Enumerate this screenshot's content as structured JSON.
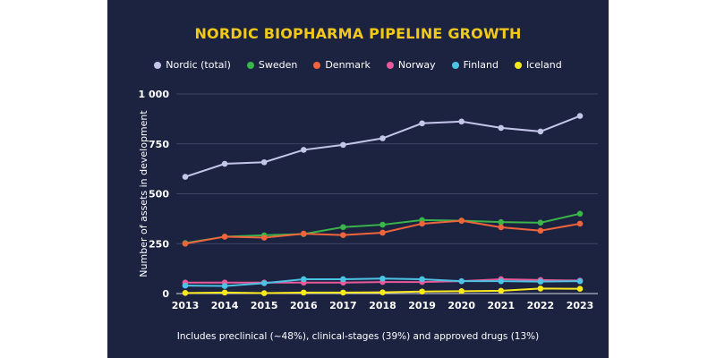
{
  "chart_data": {
    "type": "line",
    "title": "NORDIC BIOPHARMA PIPELINE GROWTH",
    "ylabel": "Number of assets in development",
    "xlabel": "",
    "x": [
      "2013",
      "2014",
      "2015",
      "2016",
      "2017",
      "2018",
      "2019",
      "2020",
      "2021",
      "2022",
      "2023"
    ],
    "ylim": [
      0,
      1000
    ],
    "yticks": [
      0,
      250,
      500,
      750,
      1000
    ],
    "ytick_labels": [
      "0",
      "250",
      "500",
      "750",
      "1 000"
    ],
    "grid": true,
    "legend_position": "top",
    "footnote": "Includes preclinical (~48%), clinical-stages (39%) and approved drugs (13%)",
    "series": [
      {
        "name": "Nordic (total)",
        "color": "#c3c6e8",
        "values": [
          585,
          650,
          658,
          720,
          745,
          778,
          853,
          862,
          830,
          812,
          890
        ]
      },
      {
        "name": "Sweden",
        "color": "#3ab54a",
        "values": [
          253,
          285,
          292,
          298,
          333,
          345,
          368,
          365,
          358,
          355,
          400
        ]
      },
      {
        "name": "Denmark",
        "color": "#f0643c",
        "values": [
          250,
          285,
          280,
          300,
          293,
          305,
          350,
          365,
          332,
          315,
          350
        ]
      },
      {
        "name": "Norway",
        "color": "#e85a9a",
        "values": [
          55,
          55,
          55,
          55,
          55,
          58,
          58,
          62,
          72,
          68,
          65
        ]
      },
      {
        "name": "Finland",
        "color": "#4cc3e4",
        "values": [
          40,
          38,
          52,
          72,
          72,
          75,
          72,
          62,
          62,
          60,
          62
        ]
      },
      {
        "name": "Iceland",
        "color": "#f8e81c",
        "values": [
          3,
          5,
          2,
          5,
          5,
          6,
          10,
          12,
          14,
          25,
          24
        ]
      }
    ]
  }
}
